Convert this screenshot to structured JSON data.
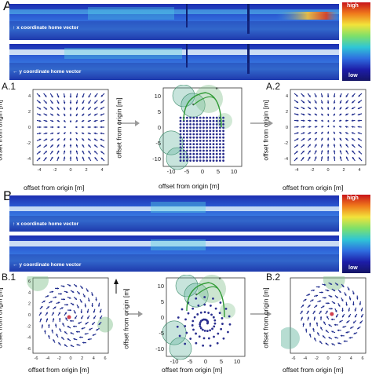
{
  "panel_A": {
    "letter": "A",
    "strip_top_label": "x coordinate home vector",
    "strip_bottom_label": "y coordinate home vector",
    "colorbar_high": "high",
    "colorbar_low": "low",
    "sub1": "A.1",
    "sub2": "A.2"
  },
  "panel_B": {
    "letter": "B",
    "strip_top_label": "x coordinate home vector",
    "strip_bottom_label": "y coordinate home vector",
    "colorbar_high": "high",
    "colorbar_low": "low",
    "sub1": "B.1",
    "sub2": "B.2"
  },
  "axes": {
    "xlabel": "offset from origin [m]",
    "ylabel": "offset from origin [m]",
    "small_ticks": [
      "-4",
      "-2",
      "0",
      "2",
      "4"
    ],
    "mid_xticks": [
      "-10",
      "-5",
      "0",
      "5",
      "10"
    ],
    "mid_yticks": [
      "10",
      "5",
      "0",
      "-5",
      "-10"
    ],
    "b1_ticks": [
      "-6",
      "-4",
      "-2",
      "0",
      "2",
      "4",
      "6"
    ],
    "goal_marker": "*"
  },
  "colors": {
    "arrow": "#1d2a8c",
    "dot": "#2a2f8f",
    "path": "#2f9a34",
    "circle_fill": "#7fbf8a",
    "circle_teal": "#5fb39c",
    "arrow_gray": "#999999"
  }
}
